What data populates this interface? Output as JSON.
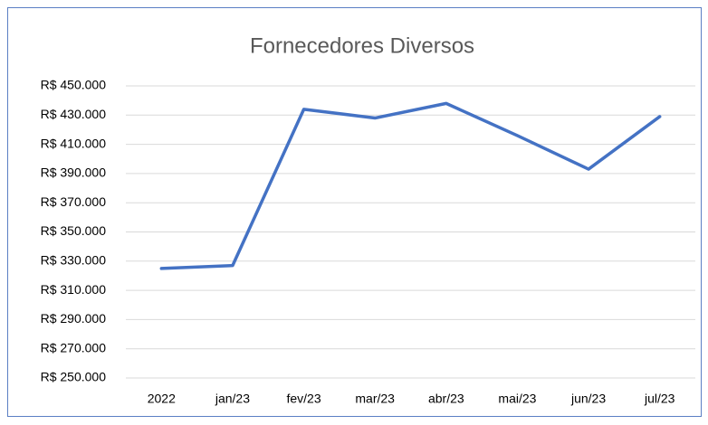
{
  "chart_data": {
    "type": "line",
    "title": "Fornecedores Diversos",
    "categories": [
      "2022",
      "jan/23",
      "fev/23",
      "mar/23",
      "abr/23",
      "mai/23",
      "jun/23",
      "jul/23"
    ],
    "series": [
      {
        "name": "Fornecedores Diversos",
        "color": "#4472c4",
        "values": [
          325000,
          327000,
          434000,
          428000,
          438000,
          416000,
          393000,
          429000
        ]
      }
    ],
    "ylim": [
      250000,
      450000
    ],
    "yticks": [
      {
        "value": 250000,
        "label": "R$ 250.000"
      },
      {
        "value": 270000,
        "label": "R$ 270.000"
      },
      {
        "value": 290000,
        "label": "R$ 290.000"
      },
      {
        "value": 310000,
        "label": "R$ 310.000"
      },
      {
        "value": 330000,
        "label": "R$ 330.000"
      },
      {
        "value": 350000,
        "label": "R$ 350.000"
      },
      {
        "value": 370000,
        "label": "R$ 370.000"
      },
      {
        "value": 390000,
        "label": "R$ 390.000"
      },
      {
        "value": 410000,
        "label": "R$ 410.000"
      },
      {
        "value": 430000,
        "label": "R$ 430.000"
      },
      {
        "value": 450000,
        "label": "R$ 450.000"
      }
    ],
    "grid": true
  }
}
